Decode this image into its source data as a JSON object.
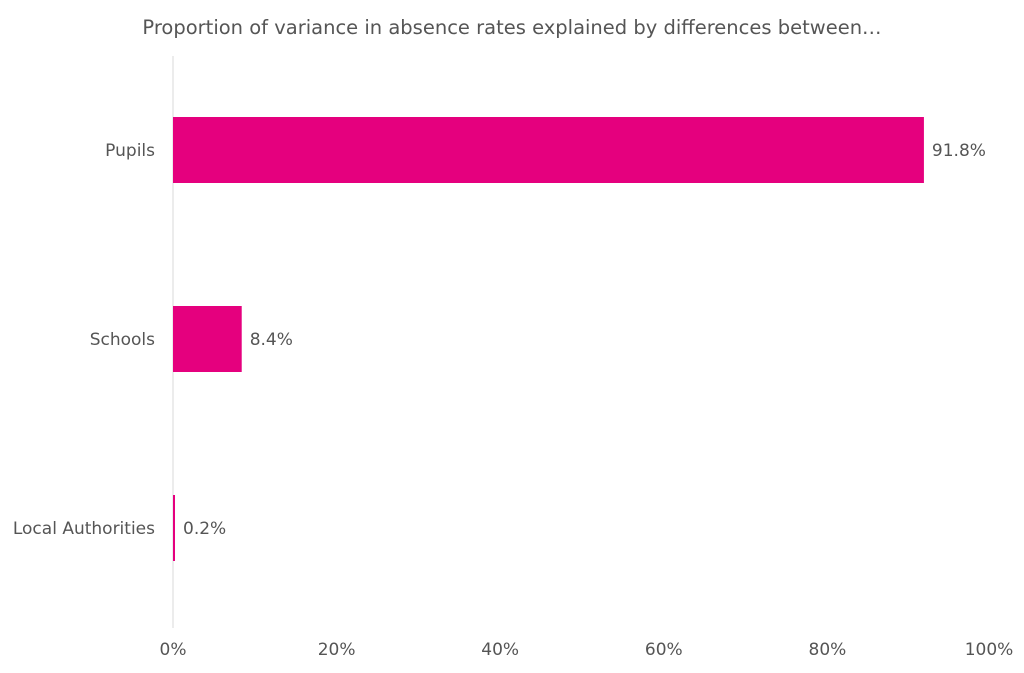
{
  "chart_data": {
    "type": "bar",
    "orientation": "horizontal",
    "title": "Proportion of variance in absence rates explained by differences between…",
    "categories": [
      "Pupils",
      "Schools",
      "Local Authorities"
    ],
    "values": [
      91.8,
      8.4,
      0.2
    ],
    "data_labels": [
      "91.8%",
      "8.4%",
      "0.2%"
    ],
    "xlim": [
      0,
      100
    ],
    "x_ticks": [
      0,
      20,
      40,
      60,
      80,
      100
    ],
    "x_tick_labels": [
      "0%",
      "20%",
      "40%",
      "60%",
      "80%",
      "100%"
    ],
    "xlabel": "",
    "ylabel": "",
    "grid": false,
    "legend": "none",
    "bar_color": "#E5007E",
    "axis_color": "#d9d9d9",
    "text_color": "#555555"
  }
}
